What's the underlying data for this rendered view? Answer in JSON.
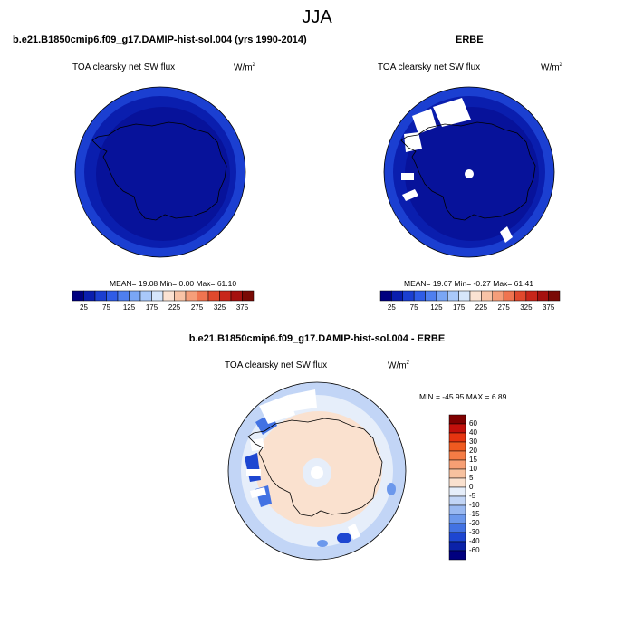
{
  "season": "JJA",
  "panels": [
    {
      "title": "b.e21.B1850cmip6.f09_g17.DAMIP-hist-sol.004 (yrs 1990-2014)",
      "variable": "TOA clearsky net SW flux",
      "units_base": "W/m",
      "units_exp": "2",
      "stats": "MEAN=  19.08  Min=   0.00  Max=  61.10"
    },
    {
      "title": "ERBE",
      "variable": "TOA clearsky net SW flux",
      "units_base": "W/m",
      "units_exp": "2",
      "stats": "MEAN=  19.67  Min=  -0.27  Max=  61.41"
    },
    {
      "title": "b.e21.B1850cmip6.f09_g17.DAMIP-hist-sol.004 - ERBE",
      "variable": "TOA clearsky net SW flux",
      "units_base": "W/m",
      "units_exp": "2",
      "stats": "MIN = -45.95 MAX =   6.89"
    }
  ],
  "flux_colorbar": {
    "tick_labels": [
      "25",
      "75",
      "125",
      "175",
      "225",
      "275",
      "325",
      "375"
    ],
    "colors": [
      "#00007f",
      "#0a1eae",
      "#1b3fd1",
      "#2f5ce6",
      "#4f7fef",
      "#7aa6f5",
      "#a9c8f9",
      "#d6e6fb",
      "#fbe2d2",
      "#f8c3a6",
      "#f59e7a",
      "#ef7450",
      "#e0492d",
      "#c8261a",
      "#a5110f",
      "#7a0a05"
    ]
  },
  "diff_colorbar": {
    "tick_labels": [
      "60",
      "40",
      "30",
      "20",
      "15",
      "10",
      "5",
      "0",
      "-5",
      "-10",
      "-15",
      "-20",
      "-30",
      "-40",
      "-60"
    ],
    "colors": [
      "#7f0000",
      "#c2100b",
      "#e63410",
      "#f05a20",
      "#f57c45",
      "#f79f74",
      "#f7c19f",
      "#fae1cf",
      "#e6eefa",
      "#c2d5f6",
      "#9ab9f1",
      "#6c98ec",
      "#4272e3",
      "#1d46d1",
      "#0b22a8",
      "#00007f"
    ]
  }
}
